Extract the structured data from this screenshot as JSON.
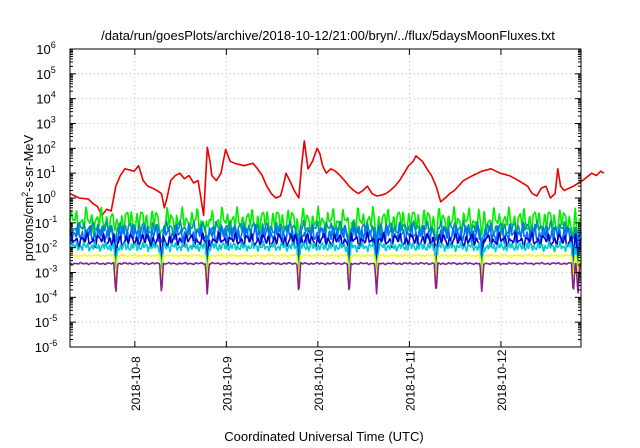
{
  "chart_data": {
    "type": "line",
    "title": "/data/run/goesPlots/archive/2018-10-12/21:00/bryn/../flux/5daysMoonFluxes.txt",
    "xlabel": "Coordinated Universal Time (UTC)",
    "ylabel": {
      "part1": "protons/cm",
      "sup": "2",
      "part2": "-s-sr-MeV"
    },
    "x_range": [
      "2018-10-07T07:00",
      "2018-10-12T21:00"
    ],
    "x_ticks": [
      "2018-10-8",
      "2018-10-9",
      "2018-10-10",
      "2018-10-11",
      "2018-10-12"
    ],
    "y_scale": "log",
    "y_range": [
      1e-06,
      1000000.0
    ],
    "y_ticks": [
      {
        "base": "10",
        "exp": "-6",
        "value": 1e-06
      },
      {
        "base": "10",
        "exp": "-5",
        "value": 1e-05
      },
      {
        "base": "10",
        "exp": "-4",
        "value": 0.0001
      },
      {
        "base": "10",
        "exp": "-3",
        "value": 0.001
      },
      {
        "base": "10",
        "exp": "-2",
        "value": 0.01
      },
      {
        "base": "10",
        "exp": "-1",
        "value": 0.1
      },
      {
        "base": "10",
        "exp": "0",
        "value": 1
      },
      {
        "base": "10",
        "exp": "1",
        "value": 10
      },
      {
        "base": "10",
        "exp": "2",
        "value": 100
      },
      {
        "base": "10",
        "exp": "3",
        "value": 1000
      },
      {
        "base": "10",
        "exp": "4",
        "value": 10000
      },
      {
        "base": "10",
        "exp": "5",
        "value": 100000
      },
      {
        "base": "10",
        "exp": "6",
        "value": 1000000
      }
    ],
    "grid": true,
    "series": [
      {
        "color": "#ee0000",
        "points": [
          [
            0.0,
            1.5
          ],
          [
            0.1,
            1.0
          ],
          [
            0.2,
            0.9
          ],
          [
            0.25,
            0.6
          ],
          [
            0.3,
            0.45
          ],
          [
            0.35,
            0.2
          ],
          [
            0.4,
            0.35
          ],
          [
            0.45,
            0.3
          ],
          [
            0.5,
            3
          ],
          [
            0.55,
            8
          ],
          [
            0.6,
            15
          ],
          [
            0.7,
            12
          ],
          [
            0.75,
            20
          ],
          [
            0.8,
            5
          ],
          [
            0.85,
            3
          ],
          [
            0.9,
            2.5
          ],
          [
            0.95,
            2.0
          ],
          [
            1.0,
            1.5
          ],
          [
            1.03,
            0.4
          ],
          [
            1.06,
            1.0
          ],
          [
            1.1,
            5
          ],
          [
            1.15,
            8
          ],
          [
            1.2,
            10
          ],
          [
            1.25,
            6
          ],
          [
            1.3,
            8
          ],
          [
            1.35,
            4
          ],
          [
            1.4,
            5
          ],
          [
            1.43,
            1.0
          ],
          [
            1.46,
            0.2
          ],
          [
            1.5,
            110
          ],
          [
            1.53,
            30
          ],
          [
            1.55,
            8
          ],
          [
            1.6,
            5
          ],
          [
            1.65,
            10
          ],
          [
            1.7,
            90
          ],
          [
            1.75,
            30
          ],
          [
            1.8,
            25
          ],
          [
            1.9,
            20
          ],
          [
            2.0,
            25
          ],
          [
            2.05,
            15
          ],
          [
            2.1,
            8
          ],
          [
            2.15,
            3
          ],
          [
            2.2,
            1.5
          ],
          [
            2.25,
            1.0
          ],
          [
            2.3,
            1.2
          ],
          [
            2.33,
            3
          ],
          [
            2.36,
            10
          ],
          [
            2.4,
            5
          ],
          [
            2.45,
            2
          ],
          [
            2.5,
            1.0
          ],
          [
            2.53,
            20
          ],
          [
            2.56,
            200
          ],
          [
            2.6,
            15
          ],
          [
            2.65,
            30
          ],
          [
            2.7,
            100
          ],
          [
            2.73,
            60
          ],
          [
            2.76,
            20
          ],
          [
            2.8,
            10
          ],
          [
            2.85,
            15
          ],
          [
            2.9,
            12
          ],
          [
            2.95,
            8
          ],
          [
            3.0,
            5
          ],
          [
            3.05,
            3
          ],
          [
            3.1,
            2
          ],
          [
            3.15,
            1.5
          ],
          [
            3.2,
            2
          ],
          [
            3.25,
            3
          ],
          [
            3.3,
            1.5
          ],
          [
            3.35,
            1.2
          ],
          [
            3.4,
            1.3
          ],
          [
            3.45,
            1.5
          ],
          [
            3.5,
            2
          ],
          [
            3.55,
            3
          ],
          [
            3.6,
            5
          ],
          [
            3.65,
            10
          ],
          [
            3.7,
            20
          ],
          [
            3.75,
            30
          ],
          [
            3.78,
            50
          ],
          [
            3.81,
            40
          ],
          [
            3.85,
            30
          ],
          [
            3.9,
            15
          ],
          [
            3.95,
            8
          ],
          [
            4.0,
            3
          ],
          [
            4.05,
            0.7
          ],
          [
            4.1,
            1.0
          ],
          [
            4.15,
            1.5
          ],
          [
            4.2,
            2
          ],
          [
            4.3,
            5
          ],
          [
            4.4,
            8
          ],
          [
            4.5,
            12
          ],
          [
            4.6,
            15
          ],
          [
            4.7,
            10
          ],
          [
            4.8,
            8
          ],
          [
            4.9,
            5
          ],
          [
            5.0,
            3
          ],
          [
            5.05,
            1.5
          ],
          [
            5.1,
            1.2
          ],
          [
            5.15,
            2.5
          ],
          [
            5.2,
            3
          ],
          [
            5.25,
            1.0
          ],
          [
            5.3,
            1.5
          ],
          [
            5.33,
            15
          ],
          [
            5.36,
            3
          ],
          [
            5.4,
            2
          ],
          [
            5.5,
            3
          ],
          [
            5.6,
            5
          ],
          [
            5.7,
            10
          ],
          [
            5.75,
            8
          ],
          [
            5.8,
            12
          ],
          [
            5.833,
            10
          ]
        ]
      },
      {
        "color": "#00ee00",
        "base": 0.12,
        "amp": 0.55,
        "period": 0.055,
        "phase": 0.0
      },
      {
        "color": "#009999",
        "base": 0.06,
        "amp": 0.3,
        "period": 0.05,
        "phase": 1.3
      },
      {
        "color": "#0070ff",
        "base": 0.035,
        "amp": 0.4,
        "period": 0.045,
        "phase": 2.1
      },
      {
        "color": "#0000cc",
        "base": 0.02,
        "amp": 0.3,
        "period": 0.06,
        "phase": 0.7
      },
      {
        "color": "#00cccc",
        "base": 0.011,
        "amp": 0.2,
        "period": 0.04,
        "phase": 2.7
      },
      {
        "color": "#ffff00",
        "base": 0.0048,
        "amp": 0.04,
        "period": 0.05,
        "phase": 0.4
      },
      {
        "color": "#882288",
        "base": 0.0023,
        "amp": 0.04,
        "period": 0.06,
        "phase": 1.9
      }
    ],
    "dips": [
      0.5,
      1.0,
      1.5,
      2.5,
      3.05,
      3.35,
      4.0,
      4.5,
      5.5,
      5.55
    ]
  }
}
